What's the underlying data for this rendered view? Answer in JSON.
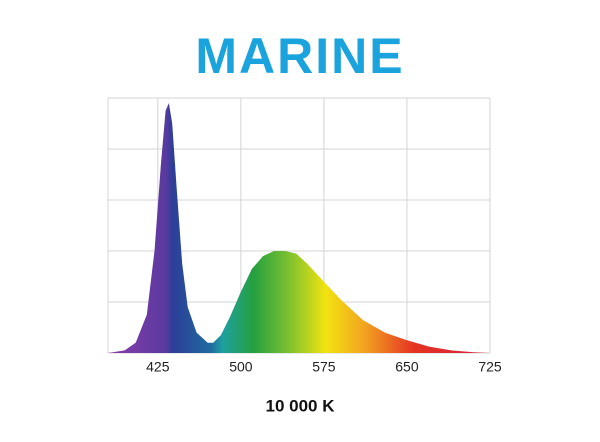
{
  "chart_data": {
    "type": "area",
    "title": "MARINE",
    "subtitle": "10 000 K",
    "x": [
      380,
      395,
      405,
      415,
      422,
      428,
      432,
      435,
      438,
      442,
      447,
      452,
      460,
      470,
      475,
      482,
      490,
      500,
      510,
      520,
      530,
      540,
      550,
      560,
      575,
      590,
      610,
      630,
      650,
      670,
      690,
      710,
      725
    ],
    "values": [
      0,
      1,
      4,
      15,
      40,
      75,
      95,
      98,
      90,
      65,
      35,
      18,
      8,
      4,
      4,
      7,
      14,
      24,
      33,
      38,
      40,
      40,
      39,
      35,
      28,
      21,
      13,
      8,
      5,
      2.5,
      1,
      0.3,
      0
    ],
    "xlim": [
      380,
      725
    ],
    "xticks": [
      425,
      500,
      575,
      650,
      725
    ],
    "ylim": [
      0,
      100
    ],
    "yticks": [
      0,
      20,
      40,
      60,
      80,
      100
    ],
    "grid": true
  }
}
